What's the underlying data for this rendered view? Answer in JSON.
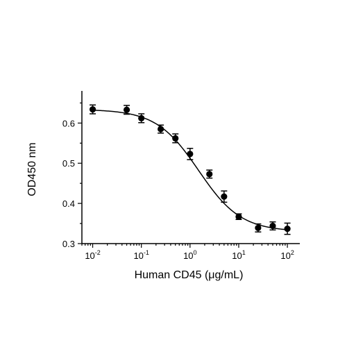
{
  "chart_data": {
    "type": "scatter",
    "title": "",
    "xlabel": "Human CD45 (μg/mL)",
    "ylabel": "OD450 nm",
    "xscale": "log",
    "xlim": [
      0.006,
      180
    ],
    "ylim": [
      0.3,
      0.68
    ],
    "grid": false,
    "legend": "none",
    "x_ticks": [
      {
        "value": 0.01,
        "base": "10",
        "exp": "-2"
      },
      {
        "value": 0.1,
        "base": "10",
        "exp": "-1"
      },
      {
        "value": 1,
        "base": "10",
        "exp": "0"
      },
      {
        "value": 10,
        "base": "10",
        "exp": "1"
      },
      {
        "value": 100,
        "base": "10",
        "exp": "2"
      }
    ],
    "y_ticks": [
      {
        "value": 0.3,
        "label": "0.3"
      },
      {
        "value": 0.4,
        "label": "0.4"
      },
      {
        "value": 0.5,
        "label": "0.5"
      },
      {
        "value": 0.6,
        "label": "0.6"
      }
    ],
    "series": [
      {
        "points": [
          {
            "x": 0.01,
            "y": 0.634,
            "err": 0.011
          },
          {
            "x": 0.05,
            "y": 0.633,
            "err": 0.011
          },
          {
            "x": 0.1,
            "y": 0.612,
            "err": 0.011
          },
          {
            "x": 0.25,
            "y": 0.585,
            "err": 0.01
          },
          {
            "x": 0.5,
            "y": 0.562,
            "err": 0.011
          },
          {
            "x": 1,
            "y": 0.523,
            "err": 0.014
          },
          {
            "x": 2.5,
            "y": 0.473,
            "err": 0.01
          },
          {
            "x": 5,
            "y": 0.417,
            "err": 0.014
          },
          {
            "x": 10,
            "y": 0.367,
            "err": 0.007
          },
          {
            "x": 25,
            "y": 0.339,
            "err": 0.01
          },
          {
            "x": 50,
            "y": 0.344,
            "err": 0.01
          },
          {
            "x": 100,
            "y": 0.337,
            "err": 0.014
          }
        ]
      },
      {
        "type": "line",
        "fit": "four-parameter logistic",
        "top": 0.634,
        "bottom": 0.33,
        "ec50": 1.5,
        "hill": 1.0
      }
    ],
    "colors": {
      "marker": "#000000",
      "line": "#000000",
      "axis": "#000000"
    }
  }
}
